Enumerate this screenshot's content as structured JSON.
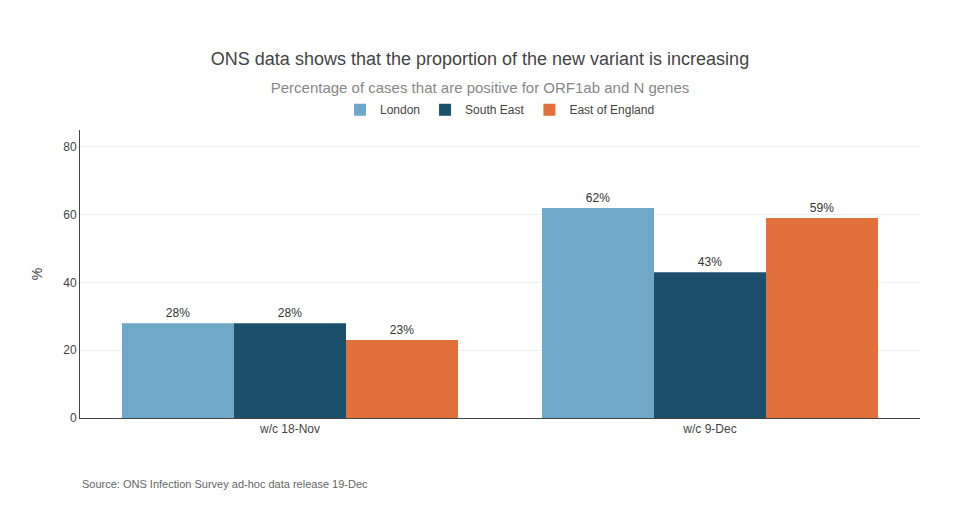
{
  "chart_data": {
    "type": "bar",
    "title": "ONS data shows that the proportion of the new variant is increasing",
    "subtitle": "Percentage of cases that are positive for ORF1ab and N genes",
    "annotations": [
      "Source: ONS Infection Survey ad-hoc data release 19-Dec"
    ],
    "y_label": "%",
    "categories": [
      "w/c 18-Nov",
      "w/c 9-Dec"
    ],
    "series": [
      {
        "name": "London",
        "color": "#6fa8c8",
        "values": [
          28,
          62
        ],
        "value_labels": [
          "28%",
          "62%"
        ]
      },
      {
        "name": "South East",
        "color": "#1b4f6b",
        "values": [
          28,
          43
        ],
        "value_labels": [
          "28%",
          "43%"
        ]
      },
      {
        "name": "East of England",
        "color": "#e2703a",
        "values": [
          23,
          59
        ],
        "value_labels": [
          "23%",
          "59%"
        ]
      }
    ],
    "ylim": [
      0,
      85
    ],
    "yticks": [
      0,
      20,
      40,
      60,
      80
    ],
    "grid": true,
    "legend": "top",
    "data_labels": true
  }
}
